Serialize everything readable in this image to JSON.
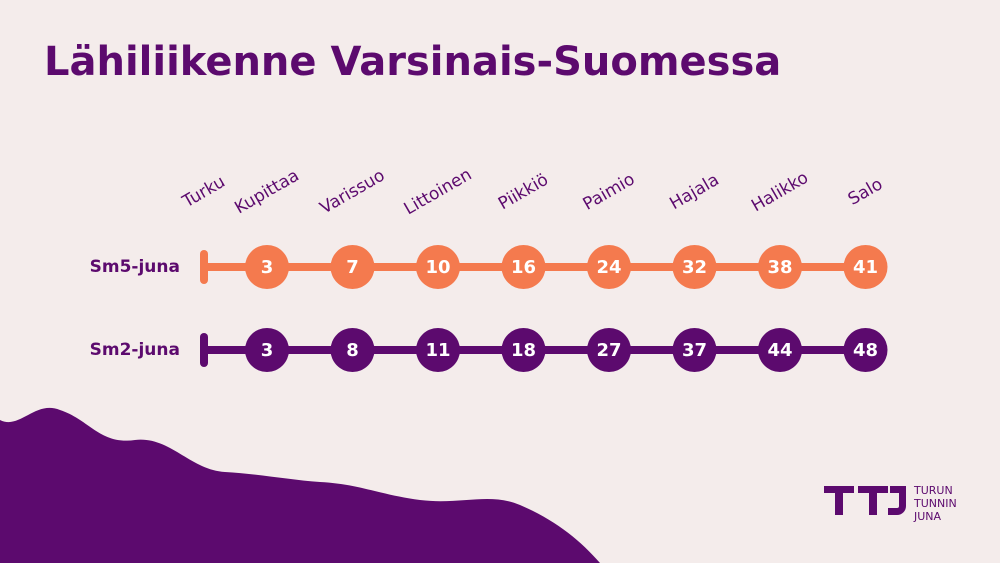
{
  "title": "Lähiliikenne Varsinais-Suomessa",
  "stations": [
    "Turku",
    "Kupittaa",
    "Varissuo",
    "Littoinen",
    "Piikkiö",
    "Paimio",
    "Hajala",
    "Halikko",
    "Salo"
  ],
  "trains": [
    {
      "name": "Sm5-juna",
      "color": "#f47a4e",
      "times": [
        3,
        7,
        10,
        16,
        24,
        32,
        38,
        41
      ]
    },
    {
      "name": "Sm2-juna",
      "color": "#5c0a6e",
      "times": [
        3,
        8,
        11,
        18,
        27,
        37,
        44,
        48
      ]
    }
  ],
  "logo": {
    "lines": [
      "TURUN",
      "TUNNIN",
      "JUNA"
    ]
  }
}
